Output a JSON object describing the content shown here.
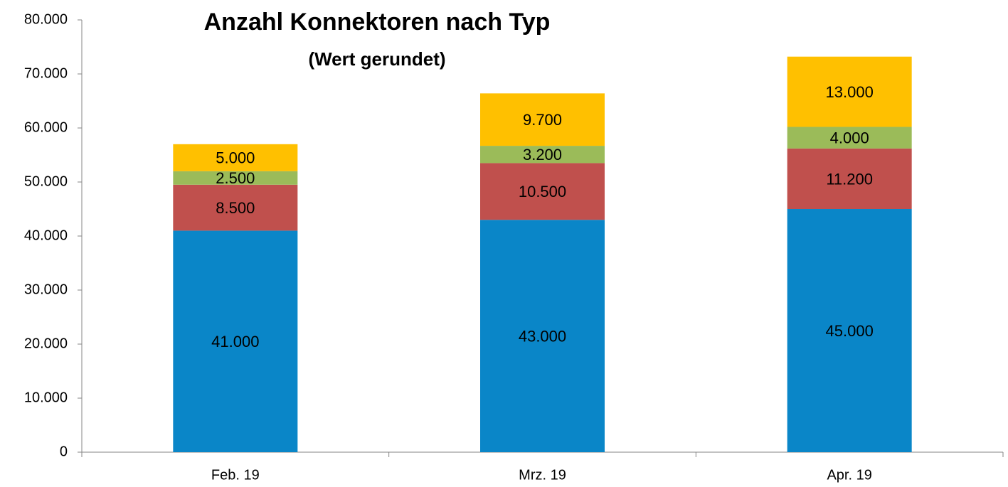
{
  "chart_data": {
    "type": "bar",
    "stacked": true,
    "title": "Anzahl Konnektoren nach Typ",
    "subtitle": "(Wert gerundet)",
    "categories": [
      "Feb. 19",
      "Mrz. 19",
      "Apr. 19"
    ],
    "series": [
      {
        "color": "#0a86c8",
        "values": [
          41000,
          43000,
          45000
        ],
        "value_labels": [
          "41.000",
          "43.000",
          "45.000"
        ]
      },
      {
        "color": "#c0504d",
        "values": [
          8500,
          10500,
          11200
        ],
        "value_labels": [
          "8.500",
          "10.500",
          "11.200"
        ]
      },
      {
        "color": "#9bbb59",
        "values": [
          2500,
          3200,
          4000
        ],
        "value_labels": [
          "2.500",
          "3.200",
          "4.000"
        ]
      },
      {
        "color": "#ffc000",
        "values": [
          5000,
          9700,
          13000
        ],
        "value_labels": [
          "5.000",
          "9.700",
          "13.000"
        ]
      }
    ],
    "ylim": [
      0,
      80000
    ],
    "yticks": [
      0,
      {
        "value": 10000,
        "label": "10.000"
      },
      {
        "value": 20000,
        "label": "20.000"
      },
      {
        "value": 30000,
        "label": "30.000"
      },
      {
        "value": 40000,
        "label": "40.000"
      },
      {
        "value": 50000,
        "label": "50.000"
      },
      {
        "value": 60000,
        "label": "60.000"
      },
      {
        "value": 70000,
        "label": "70.000"
      },
      {
        "value": 80000,
        "label": "80.000"
      }
    ],
    "grid": false
  }
}
